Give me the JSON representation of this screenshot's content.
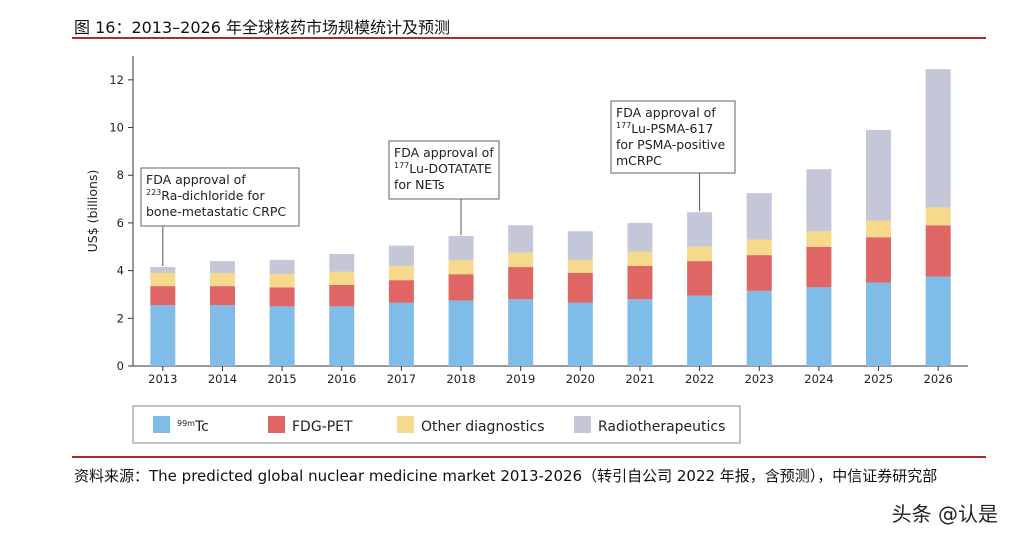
{
  "figure": {
    "title": "图 16：2013–2026 年全球核药市场规模统计及预测",
    "source": "资料来源：The predicted global nuclear medicine market 2013-2026（转引自公司 2022 年报，含预测），中信证券研究部",
    "watermark": "头条 @认是"
  },
  "chart_data": {
    "type": "bar",
    "stacked": true,
    "ylabel": "US$ (billions)",
    "ylim": [
      0,
      13
    ],
    "yticks": [
      0,
      2,
      4,
      6,
      8,
      10,
      12
    ],
    "grid": false,
    "legend_position": "bottom",
    "categories": [
      "2013",
      "2014",
      "2015",
      "2016",
      "2017",
      "2018",
      "2019",
      "2020",
      "2021",
      "2022",
      "2023",
      "2024",
      "2025",
      "2026"
    ],
    "series": [
      {
        "name": "99mTc",
        "name_sup": "99m",
        "name_main": "Tc",
        "color": "#7fbde8",
        "values": [
          2.55,
          2.55,
          2.5,
          2.5,
          2.65,
          2.75,
          2.8,
          2.65,
          2.8,
          2.95,
          3.15,
          3.3,
          3.5,
          3.75
        ]
      },
      {
        "name": "FDG-PET",
        "color": "#e06666",
        "values": [
          0.8,
          0.8,
          0.8,
          0.9,
          0.95,
          1.1,
          1.35,
          1.25,
          1.4,
          1.45,
          1.5,
          1.7,
          1.9,
          2.15
        ]
      },
      {
        "name": "Other diagnostics",
        "color": "#f7d98b",
        "values": [
          0.55,
          0.55,
          0.55,
          0.55,
          0.6,
          0.6,
          0.6,
          0.55,
          0.6,
          0.6,
          0.65,
          0.65,
          0.7,
          0.75
        ]
      },
      {
        "name": "Radiotherapeutics",
        "color": "#c3c7d8",
        "values": [
          0.25,
          0.5,
          0.6,
          0.75,
          0.85,
          1.0,
          1.15,
          1.2,
          1.2,
          1.45,
          1.95,
          2.6,
          3.8,
          5.8
        ]
      }
    ],
    "annotations": [
      {
        "category": "2013",
        "lines": [
          {
            "main": "FDA approval of"
          },
          {
            "sup": "223",
            "main": "Ra-dichloride for"
          },
          {
            "main": "bone-metastatic CRPC"
          }
        ]
      },
      {
        "category": "2018",
        "lines": [
          {
            "main": "FDA approval of"
          },
          {
            "sup": "177",
            "main": "Lu-DOTATATE"
          },
          {
            "main": "for NETs"
          }
        ]
      },
      {
        "category": "2022",
        "lines": [
          {
            "main": "FDA approval of"
          },
          {
            "sup": "177",
            "main": "Lu-PSMA-617"
          },
          {
            "main": "for PSMA-positive"
          },
          {
            "main": "mCRPC"
          }
        ]
      }
    ]
  }
}
